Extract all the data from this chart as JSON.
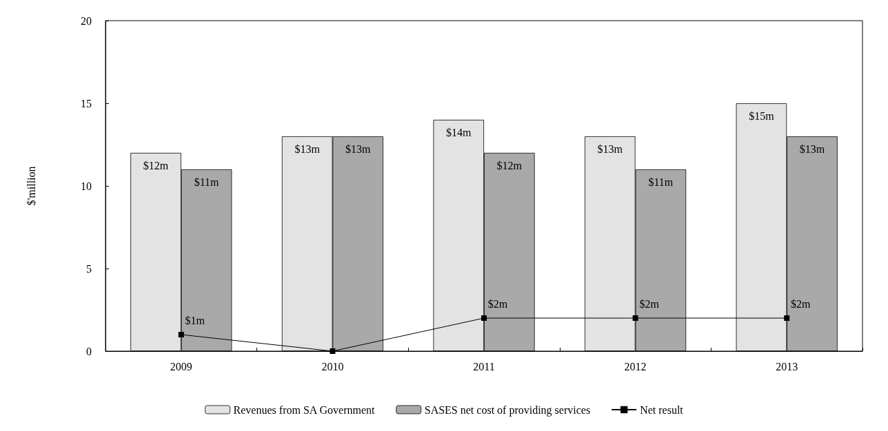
{
  "chart_data": {
    "type": "bar",
    "ylabel": "$'million",
    "categories": [
      "2009",
      "2010",
      "2011",
      "2012",
      "2013"
    ],
    "series": [
      {
        "name": "Revenues from SA Government",
        "color": "#e3e3e3",
        "values": [
          12,
          13,
          14,
          13,
          15
        ],
        "value_labels": [
          "$12m",
          "$13m",
          "$14m",
          "$13m",
          "$15m"
        ]
      },
      {
        "name": "SASES net cost of providing services",
        "color": "#a9a9a9",
        "values": [
          11,
          13,
          12,
          11,
          13
        ],
        "value_labels": [
          "$11m",
          "$13m",
          "$12m",
          "$11m",
          "$13m"
        ]
      },
      {
        "name": "Net result",
        "type": "line",
        "color": "#000000",
        "marker": "square",
        "values": [
          1,
          0,
          2,
          2,
          2
        ],
        "value_labels": [
          "$1m",
          null,
          "$2m",
          "$2m",
          "$2m"
        ]
      }
    ],
    "ylim": [
      0,
      20
    ],
    "yticks": [
      0,
      5,
      10,
      15,
      20
    ],
    "grid": false,
    "legend": "bottom"
  }
}
